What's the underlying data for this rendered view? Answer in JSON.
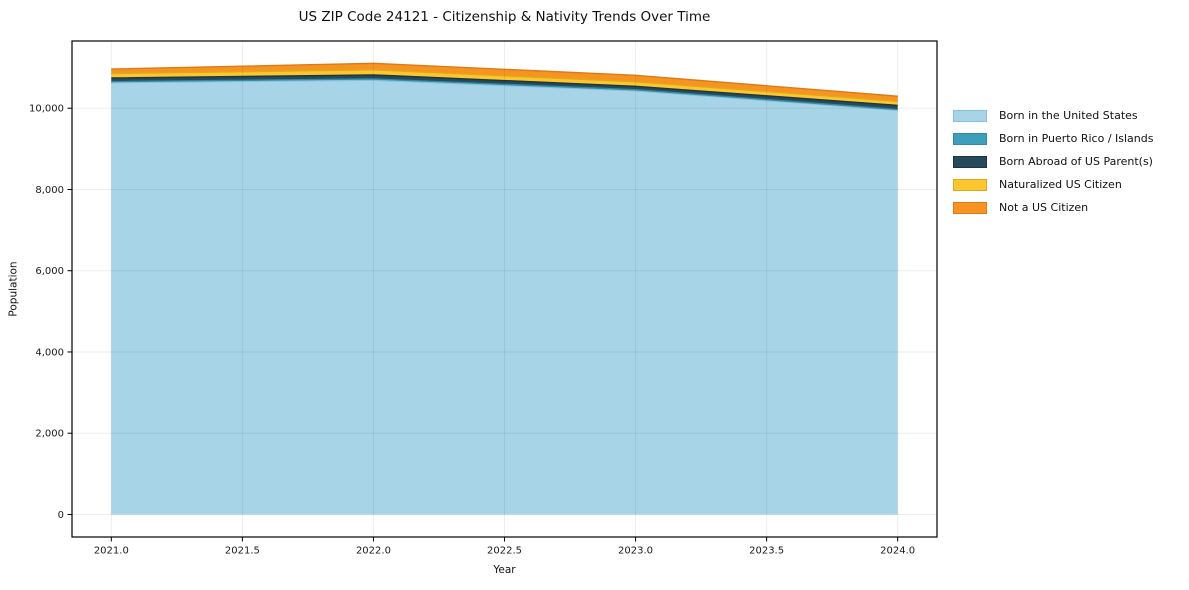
{
  "chart_data": {
    "type": "area",
    "stacked": true,
    "title": "US ZIP Code 24121 - Citizenship & Nativity Trends Over Time",
    "xlabel": "Year",
    "ylabel": "Population",
    "x": [
      2021,
      2022,
      2023,
      2024
    ],
    "series": [
      {
        "name": "Born in the United States",
        "values": [
          10630,
          10690,
          10430,
          9950
        ],
        "color": "#a8d4e8",
        "edge": "#86c0dc"
      },
      {
        "name": "Born in Puerto Rico / Islands",
        "values": [
          25,
          30,
          25,
          20
        ],
        "color": "#3d9fbb",
        "edge": "#35899f"
      },
      {
        "name": "Born Abroad of US Parent(s)",
        "values": [
          90,
          100,
          85,
          100
        ],
        "color": "#264a5c",
        "edge": "#1b3542"
      },
      {
        "name": "Naturalized US Citizen",
        "values": [
          110,
          125,
          110,
          100
        ],
        "color": "#fcc72e",
        "edge": "#dfa91d"
      },
      {
        "name": "Not a US Citizen",
        "values": [
          110,
          160,
          160,
          125
        ],
        "color": "#f79421",
        "edge": "#db7b15"
      }
    ],
    "xlim": [
      2020.85,
      2024.15
    ],
    "ylim": [
      -555,
      11655
    ],
    "xticks": {
      "values": [
        2021.0,
        2021.5,
        2022.0,
        2022.5,
        2023.0,
        2023.5,
        2024.0
      ],
      "labels": [
        "2021.0",
        "2021.5",
        "2022.0",
        "2022.5",
        "2023.0",
        "2023.5",
        "2024.0"
      ]
    },
    "yticks": {
      "values": [
        0,
        2000,
        4000,
        6000,
        8000,
        10000
      ],
      "labels": [
        "0",
        "2,000",
        "4,000",
        "6,000",
        "8,000",
        "10,000"
      ]
    },
    "grid": true,
    "legend_position": "outside-right",
    "style": {
      "background": "#ffffff",
      "spine_color": "#000000",
      "grid_color": "rgba(0,0,0,0.07)",
      "tick_color": "#000000",
      "text_color": "#1a1a1a"
    }
  }
}
